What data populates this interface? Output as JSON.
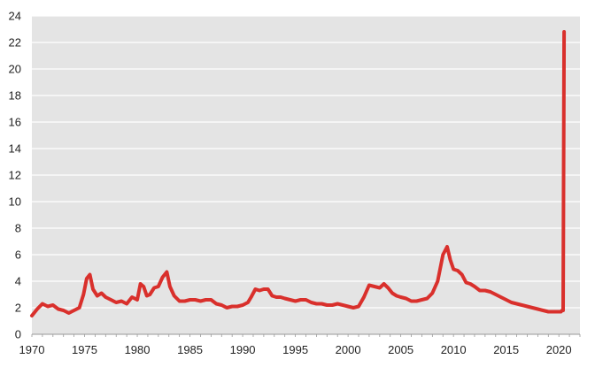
{
  "chart_data": {
    "type": "line",
    "title": "",
    "xlabel": "",
    "ylabel": "",
    "xlim": [
      1970,
      2022
    ],
    "ylim": [
      0,
      24
    ],
    "x_ticks": [
      "1970",
      "1975",
      "1980",
      "1985",
      "1990",
      "1995",
      "2000",
      "2005",
      "2010",
      "2015",
      "2020"
    ],
    "y_ticks": [
      "0",
      "2",
      "4",
      "6",
      "8",
      "10",
      "12",
      "14",
      "16",
      "18",
      "20",
      "22",
      "24"
    ],
    "grid": true,
    "legend": "none",
    "colors": {
      "line": "#d9302c",
      "plot_background": "#e4e4e4",
      "gridline": "#ffffff"
    },
    "series": [
      {
        "x": [
          1970.0,
          1970.5,
          1971.0,
          1971.5,
          1972.0,
          1972.5,
          1973.0,
          1973.5,
          1974.0,
          1974.5,
          1974.9,
          1975.2,
          1975.5,
          1975.8,
          1976.2,
          1976.6,
          1977.0,
          1977.5,
          1978.0,
          1978.5,
          1979.0,
          1979.5,
          1980.0,
          1980.3,
          1980.6,
          1980.9,
          1981.2,
          1981.6,
          1982.0,
          1982.4,
          1982.8,
          1983.1,
          1983.5,
          1984.0,
          1984.5,
          1985.0,
          1985.5,
          1986.0,
          1986.5,
          1987.0,
          1987.5,
          1988.0,
          1988.5,
          1989.0,
          1989.5,
          1990.0,
          1990.5,
          1990.8,
          1991.2,
          1991.6,
          1992.0,
          1992.4,
          1992.8,
          1993.2,
          1993.6,
          1994.0,
          1994.5,
          1995.0,
          1995.5,
          1996.0,
          1996.5,
          1997.0,
          1997.5,
          1998.0,
          1998.5,
          1999.0,
          1999.5,
          2000.0,
          2000.5,
          2001.0,
          2001.5,
          2002.0,
          2002.5,
          2003.0,
          2003.4,
          2003.8,
          2004.2,
          2004.6,
          2005.0,
          2005.5,
          2006.0,
          2006.5,
          2007.0,
          2007.5,
          2008.0,
          2008.5,
          2009.0,
          2009.4,
          2009.7,
          2010.0,
          2010.4,
          2010.8,
          2011.2,
          2011.6,
          2012.0,
          2012.5,
          2013.0,
          2013.5,
          2014.0,
          2014.5,
          2015.0,
          2015.5,
          2016.0,
          2016.5,
          2017.0,
          2017.5,
          2018.0,
          2018.5,
          2019.0,
          2019.5,
          2020.0,
          2020.2,
          2020.3,
          2020.4,
          2020.5
        ],
        "values": [
          1.4,
          1.9,
          2.3,
          2.1,
          2.2,
          1.9,
          1.8,
          1.6,
          1.8,
          2.0,
          3.0,
          4.2,
          4.5,
          3.4,
          2.9,
          3.1,
          2.8,
          2.6,
          2.4,
          2.5,
          2.3,
          2.8,
          2.6,
          3.8,
          3.6,
          2.9,
          3.0,
          3.5,
          3.6,
          4.3,
          4.7,
          3.6,
          2.9,
          2.5,
          2.5,
          2.6,
          2.6,
          2.5,
          2.6,
          2.6,
          2.3,
          2.2,
          2.0,
          2.1,
          2.1,
          2.2,
          2.4,
          2.8,
          3.4,
          3.3,
          3.4,
          3.4,
          2.9,
          2.8,
          2.8,
          2.7,
          2.6,
          2.5,
          2.6,
          2.6,
          2.4,
          2.3,
          2.3,
          2.2,
          2.2,
          2.3,
          2.2,
          2.1,
          2.0,
          2.1,
          2.8,
          3.7,
          3.6,
          3.5,
          3.8,
          3.5,
          3.1,
          2.9,
          2.8,
          2.7,
          2.5,
          2.5,
          2.6,
          2.7,
          3.1,
          4.0,
          6.0,
          6.6,
          5.6,
          4.9,
          4.8,
          4.5,
          3.9,
          3.8,
          3.6,
          3.3,
          3.3,
          3.2,
          3.0,
          2.8,
          2.6,
          2.4,
          2.3,
          2.2,
          2.1,
          2.0,
          1.9,
          1.8,
          1.7,
          1.7,
          1.7,
          1.7,
          1.8,
          1.8,
          22.8
        ]
      }
    ]
  }
}
